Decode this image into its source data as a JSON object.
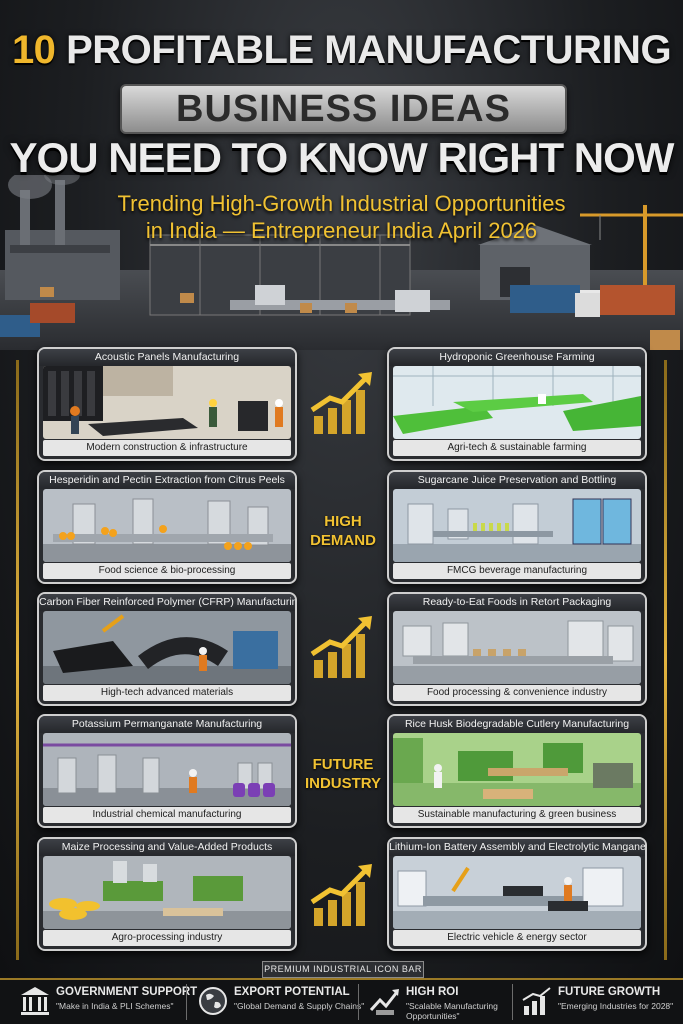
{
  "header": {
    "title_number": "10",
    "title_rest": "PROFITABLE MANUFACTURING",
    "title_box": "BUSINESS IDEAS",
    "title_line3": "YOU NEED TO KNOW RIGHT NOW",
    "subtitle_line1": "Trending High-Growth Industrial Opportunities",
    "subtitle_line2": "in India — Entrepreneur India April 2026"
  },
  "cards_left": [
    {
      "title": "Acoustic Panels Manufacturing",
      "caption": "Modern construction & infrastructure"
    },
    {
      "title": "Hesperidin and Pectin Extraction from Citrus Peels",
      "caption": "Food science & bio-processing"
    },
    {
      "title": "Carbon Fiber Reinforced Polymer (CFRP) Manufacturing",
      "caption": "High-tech advanced materials"
    },
    {
      "title": "Potassium Permanganate Manufacturing",
      "caption": "Industrial chemical manufacturing"
    },
    {
      "title": "Maize Processing and Value-Added Products",
      "caption": "Agro-processing industry"
    }
  ],
  "cards_right": [
    {
      "title": "Hydroponic Greenhouse Farming",
      "caption": "Agri-tech & sustainable farming"
    },
    {
      "title": "Sugarcane Juice Preservation and Bottling",
      "caption": "FMCG beverage manufacturing"
    },
    {
      "title": "Ready-to-Eat Foods in Retort Packaging",
      "caption": "Food processing & convenience industry"
    },
    {
      "title": "Rice Husk Biodegradable Cutlery Manufacturing",
      "caption": "Sustainable manufacturing & green business"
    },
    {
      "title": "Lithium-Ion Battery Assembly and Electrolytic Manganese Metal",
      "caption": "Electric vehicle & energy sector"
    }
  ],
  "middle": {
    "label_1_line1": "HIGH",
    "label_1_line2": "DEMAND",
    "label_2_line1": "FUTURE",
    "label_2_line2": "INDUSTRY"
  },
  "icon_bar": {
    "label": "PREMIUM INDUSTRIAL ICON BAR",
    "items": [
      {
        "icon": "government-building-icon",
        "title": "GOVERNMENT SUPPORT",
        "detail": "\"Make in India & PLI Schemes\"",
        "detail2": ""
      },
      {
        "icon": "globe-icon",
        "title": "EXPORT POTENTIAL",
        "detail": "\"Global Demand & Supply Chains\"",
        "detail2": ""
      },
      {
        "icon": "roi-arrow-icon",
        "title": "HIGH ROI",
        "detail": "\"Scalable Manufacturing",
        "detail2": "Opportunities\""
      },
      {
        "icon": "growth-chart-icon",
        "title": "FUTURE GROWTH",
        "detail": "\"Emerging Industries for 2028\"",
        "detail2": ""
      }
    ]
  },
  "colors": {
    "gold": "#f1c232",
    "panel": "#2a2c30",
    "border": "#cfcfcf"
  }
}
